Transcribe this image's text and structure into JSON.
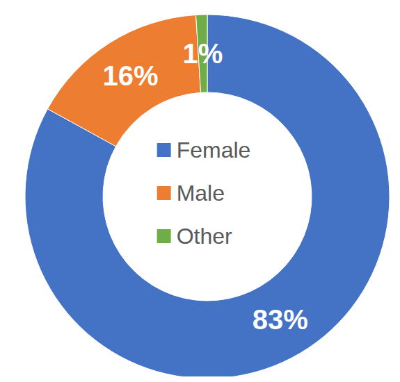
{
  "chart_data": {
    "type": "pie",
    "categories": [
      "Female",
      "Male",
      "Other"
    ],
    "values": [
      83,
      16,
      1
    ],
    "value_labels": [
      "83%",
      "16%",
      "1%"
    ],
    "colors": [
      "#4472c4",
      "#ed7d31",
      "#70ad47"
    ],
    "data_labels": true,
    "legend": "center"
  }
}
